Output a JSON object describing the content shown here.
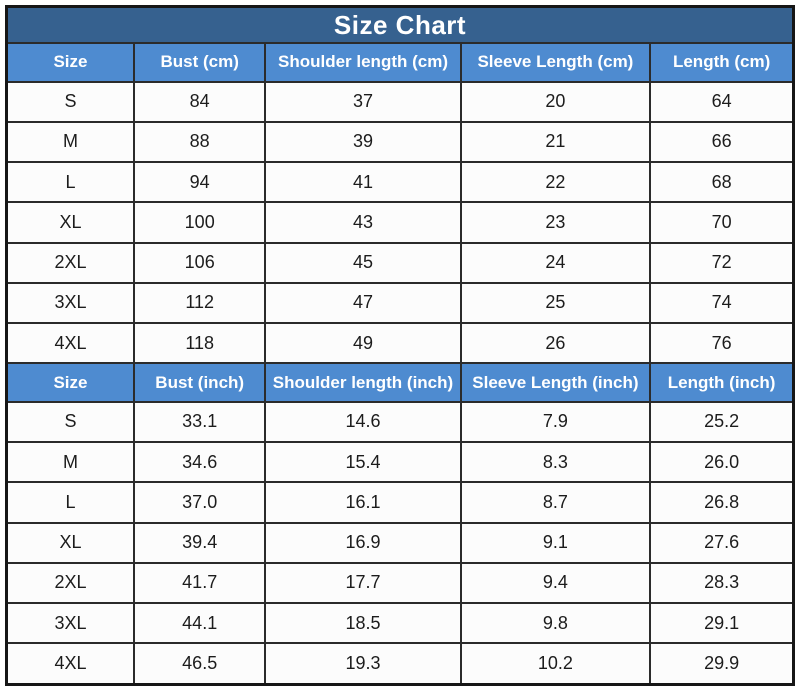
{
  "title": "Size Chart",
  "colors": {
    "title_bar_bg": "#36618F",
    "header_row_bg": "#4E8BD0",
    "header_text": "#FFFFFF",
    "body_cell_bg": "#FCFCFC",
    "body_text": "#1C1C1C",
    "grid_line": "#2B2B2B",
    "outer_border": "#161616"
  },
  "chart_data": [
    {
      "type": "table",
      "unit": "cm",
      "title": "Size Chart",
      "columns": [
        "Size",
        "Bust (cm)",
        "Shoulder length (cm)",
        "Sleeve Length (cm)",
        "Length (cm)"
      ],
      "rows": [
        [
          "S",
          "84",
          "37",
          "20",
          "64"
        ],
        [
          "M",
          "88",
          "39",
          "21",
          "66"
        ],
        [
          "L",
          "94",
          "41",
          "22",
          "68"
        ],
        [
          "XL",
          "100",
          "43",
          "23",
          "70"
        ],
        [
          "2XL",
          "106",
          "45",
          "24",
          "72"
        ],
        [
          "3XL",
          "112",
          "47",
          "25",
          "74"
        ],
        [
          "4XL",
          "118",
          "49",
          "26",
          "76"
        ]
      ]
    },
    {
      "type": "table",
      "unit": "inch",
      "columns": [
        "Size",
        "Bust (inch)",
        "Shoulder length (inch)",
        "Sleeve Length (inch)",
        "Length (inch)"
      ],
      "rows": [
        [
          "S",
          "33.1",
          "14.6",
          "7.9",
          "25.2"
        ],
        [
          "M",
          "34.6",
          "15.4",
          "8.3",
          "26.0"
        ],
        [
          "L",
          "37.0",
          "16.1",
          "8.7",
          "26.8"
        ],
        [
          "XL",
          "39.4",
          "16.9",
          "9.1",
          "27.6"
        ],
        [
          "2XL",
          "41.7",
          "17.7",
          "9.4",
          "28.3"
        ],
        [
          "3XL",
          "44.1",
          "18.5",
          "9.8",
          "29.1"
        ],
        [
          "4XL",
          "46.5",
          "19.3",
          "10.2",
          "29.9"
        ]
      ]
    }
  ]
}
